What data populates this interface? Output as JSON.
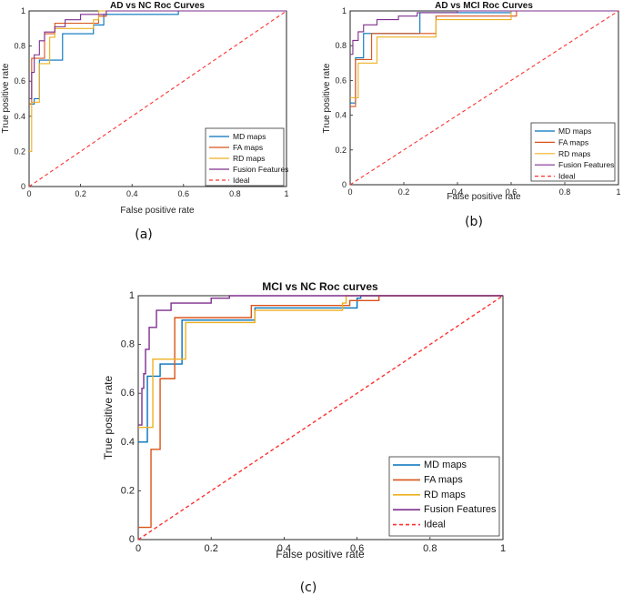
{
  "chart_data": [
    {
      "id": "a",
      "type": "line",
      "title": "AD vs NC Roc Curves",
      "xlabel": "False positive rate",
      "ylabel": "True positive rate",
      "caption": "(a)",
      "xlim": [
        0,
        1
      ],
      "ylim": [
        0,
        1
      ],
      "xticks": [
        "0",
        "0.2",
        "0.4",
        "0.6",
        "0.8",
        "1"
      ],
      "yticks": [
        "0",
        "0.2",
        "0.4",
        "0.6",
        "0.8",
        "1"
      ],
      "legend_position": "bottom-right",
      "series": [
        {
          "name": "MD maps",
          "color": "#0072BD",
          "dashed": false,
          "points": [
            [
              0,
              0.47
            ],
            [
              0.02,
              0.47
            ],
            [
              0.02,
              0.5
            ],
            [
              0.04,
              0.5
            ],
            [
              0.04,
              0.72
            ],
            [
              0.13,
              0.72
            ],
            [
              0.13,
              0.87
            ],
            [
              0.25,
              0.87
            ],
            [
              0.25,
              0.92
            ],
            [
              0.29,
              0.92
            ],
            [
              0.29,
              0.98
            ],
            [
              0.58,
              0.98
            ],
            [
              0.58,
              1
            ],
            [
              1,
              1
            ]
          ]
        },
        {
          "name": "FA maps",
          "color": "#D95319",
          "dashed": false,
          "points": [
            [
              0,
              0.47
            ],
            [
              0.01,
              0.47
            ],
            [
              0.01,
              0.73
            ],
            [
              0.06,
              0.73
            ],
            [
              0.06,
              0.87
            ],
            [
              0.1,
              0.87
            ],
            [
              0.1,
              0.93
            ],
            [
              0.27,
              0.93
            ],
            [
              0.27,
              0.97
            ],
            [
              0.3,
              0.97
            ],
            [
              0.3,
              1
            ],
            [
              1,
              1
            ]
          ]
        },
        {
          "name": "RD maps",
          "color": "#EDB120",
          "dashed": false,
          "points": [
            [
              0,
              0.2
            ],
            [
              0.01,
              0.2
            ],
            [
              0.01,
              0.48
            ],
            [
              0.04,
              0.48
            ],
            [
              0.04,
              0.7
            ],
            [
              0.08,
              0.7
            ],
            [
              0.08,
              0.85
            ],
            [
              0.1,
              0.85
            ],
            [
              0.1,
              0.9
            ],
            [
              0.25,
              0.9
            ],
            [
              0.25,
              0.95
            ],
            [
              0.27,
              0.95
            ],
            [
              0.27,
              1
            ],
            [
              1,
              1
            ]
          ]
        },
        {
          "name": "Fusion Features",
          "color": "#7E2F8E",
          "dashed": false,
          "points": [
            [
              0,
              0.5
            ],
            [
              0.01,
              0.5
            ],
            [
              0.01,
              0.65
            ],
            [
              0.02,
              0.65
            ],
            [
              0.02,
              0.75
            ],
            [
              0.04,
              0.75
            ],
            [
              0.04,
              0.83
            ],
            [
              0.06,
              0.83
            ],
            [
              0.06,
              0.88
            ],
            [
              0.1,
              0.88
            ],
            [
              0.1,
              0.91
            ],
            [
              0.14,
              0.91
            ],
            [
              0.14,
              0.95
            ],
            [
              0.2,
              0.95
            ],
            [
              0.2,
              0.98
            ],
            [
              0.3,
              0.98
            ],
            [
              0.3,
              1
            ],
            [
              1,
              1
            ]
          ]
        },
        {
          "name": "Ideal",
          "color": "#FF3030",
          "dashed": true,
          "points": [
            [
              0,
              0
            ],
            [
              1,
              1
            ]
          ]
        }
      ]
    },
    {
      "id": "b",
      "type": "line",
      "title": "AD vs MCI Roc Curves",
      "xlabel": "False positive rate",
      "ylabel": "True positive rate",
      "caption": "(b)",
      "xlim": [
        0,
        1
      ],
      "ylim": [
        0,
        1
      ],
      "xticks": [
        "0",
        "0.2",
        "0.4",
        "0.6",
        "0.8",
        "1"
      ],
      "yticks": [
        "0",
        "0.2",
        "0.4",
        "0.6",
        "0.8",
        "1"
      ],
      "legend_position": "bottom-right",
      "series": [
        {
          "name": "MD maps",
          "color": "#0072BD",
          "dashed": false,
          "points": [
            [
              0,
              0.47
            ],
            [
              0.02,
              0.47
            ],
            [
              0.02,
              0.73
            ],
            [
              0.05,
              0.73
            ],
            [
              0.05,
              0.87
            ],
            [
              0.26,
              0.87
            ],
            [
              0.26,
              0.99
            ],
            [
              0.6,
              0.99
            ],
            [
              0.6,
              1
            ],
            [
              1,
              1
            ]
          ]
        },
        {
          "name": "FA maps",
          "color": "#D95319",
          "dashed": false,
          "points": [
            [
              0,
              0.45
            ],
            [
              0.02,
              0.45
            ],
            [
              0.02,
              0.72
            ],
            [
              0.08,
              0.72
            ],
            [
              0.08,
              0.87
            ],
            [
              0.32,
              0.87
            ],
            [
              0.32,
              0.97
            ],
            [
              0.62,
              0.97
            ],
            [
              0.62,
              1
            ],
            [
              1,
              1
            ]
          ]
        },
        {
          "name": "RD maps",
          "color": "#EDB120",
          "dashed": false,
          "points": [
            [
              0,
              0.5
            ],
            [
              0.03,
              0.5
            ],
            [
              0.03,
              0.7
            ],
            [
              0.1,
              0.7
            ],
            [
              0.1,
              0.85
            ],
            [
              0.32,
              0.85
            ],
            [
              0.32,
              0.95
            ],
            [
              0.6,
              0.95
            ],
            [
              0.6,
              1
            ],
            [
              1,
              1
            ]
          ]
        },
        {
          "name": "Fusion Features",
          "color": "#7E2F8E",
          "dashed": false,
          "points": [
            [
              0,
              0.75
            ],
            [
              0.01,
              0.75
            ],
            [
              0.01,
              0.83
            ],
            [
              0.03,
              0.83
            ],
            [
              0.03,
              0.88
            ],
            [
              0.05,
              0.88
            ],
            [
              0.05,
              0.92
            ],
            [
              0.1,
              0.92
            ],
            [
              0.1,
              0.95
            ],
            [
              0.18,
              0.95
            ],
            [
              0.18,
              0.97
            ],
            [
              0.25,
              0.97
            ],
            [
              0.25,
              0.99
            ],
            [
              0.4,
              0.99
            ],
            [
              0.4,
              1
            ],
            [
              1,
              1
            ]
          ]
        },
        {
          "name": "Ideal",
          "color": "#FF3030",
          "dashed": true,
          "points": [
            [
              0,
              0
            ],
            [
              1,
              1
            ]
          ]
        }
      ]
    },
    {
      "id": "c",
      "type": "line",
      "title": "MCI vs NC Roc curves",
      "xlabel": "False positive rate",
      "ylabel": "True positive rate",
      "caption": "(c)",
      "xlim": [
        0,
        1
      ],
      "ylim": [
        0,
        1
      ],
      "xticks": [
        "0",
        "0.2",
        "0.4",
        "0.6",
        "0.8",
        "1"
      ],
      "yticks": [
        "0",
        "0.2",
        "0.4",
        "0.6",
        "0.8",
        "1"
      ],
      "legend_position": "bottom-right",
      "series": [
        {
          "name": "MD maps",
          "color": "#0072BD",
          "dashed": false,
          "points": [
            [
              0,
              0.4
            ],
            [
              0.025,
              0.4
            ],
            [
              0.025,
              0.67
            ],
            [
              0.06,
              0.67
            ],
            [
              0.06,
              0.72
            ],
            [
              0.12,
              0.72
            ],
            [
              0.12,
              0.9
            ],
            [
              0.32,
              0.9
            ],
            [
              0.32,
              0.95
            ],
            [
              0.6,
              0.95
            ],
            [
              0.6,
              0.99
            ],
            [
              0.61,
              0.99
            ],
            [
              0.61,
              1
            ],
            [
              1,
              1
            ]
          ]
        },
        {
          "name": "FA maps",
          "color": "#D95319",
          "dashed": false,
          "points": [
            [
              0,
              0.05
            ],
            [
              0.035,
              0.05
            ],
            [
              0.035,
              0.37
            ],
            [
              0.06,
              0.37
            ],
            [
              0.06,
              0.66
            ],
            [
              0.1,
              0.66
            ],
            [
              0.1,
              0.91
            ],
            [
              0.31,
              0.91
            ],
            [
              0.31,
              0.96
            ],
            [
              0.58,
              0.96
            ],
            [
              0.58,
              0.98
            ],
            [
              0.66,
              0.98
            ],
            [
              0.66,
              1
            ],
            [
              1,
              1
            ]
          ]
        },
        {
          "name": "RD maps",
          "color": "#EDB120",
          "dashed": false,
          "points": [
            [
              0,
              0.46
            ],
            [
              0.04,
              0.46
            ],
            [
              0.04,
              0.74
            ],
            [
              0.13,
              0.74
            ],
            [
              0.13,
              0.89
            ],
            [
              0.32,
              0.89
            ],
            [
              0.32,
              0.94
            ],
            [
              0.56,
              0.94
            ],
            [
              0.56,
              0.97
            ],
            [
              0.57,
              0.97
            ],
            [
              0.57,
              1
            ],
            [
              1,
              1
            ]
          ]
        },
        {
          "name": "Fusion Features",
          "color": "#7E2F8E",
          "dashed": false,
          "points": [
            [
              0,
              0.47
            ],
            [
              0.01,
              0.47
            ],
            [
              0.01,
              0.62
            ],
            [
              0.015,
              0.62
            ],
            [
              0.015,
              0.68
            ],
            [
              0.02,
              0.68
            ],
            [
              0.02,
              0.78
            ],
            [
              0.03,
              0.78
            ],
            [
              0.03,
              0.87
            ],
            [
              0.05,
              0.87
            ],
            [
              0.05,
              0.94
            ],
            [
              0.09,
              0.94
            ],
            [
              0.09,
              0.97
            ],
            [
              0.2,
              0.97
            ],
            [
              0.2,
              0.99
            ],
            [
              0.25,
              0.99
            ],
            [
              0.25,
              1
            ],
            [
              1,
              1
            ]
          ]
        },
        {
          "name": "Ideal",
          "color": "#FF3030",
          "dashed": true,
          "points": [
            [
              0,
              0
            ],
            [
              1,
              1
            ]
          ]
        }
      ]
    }
  ]
}
